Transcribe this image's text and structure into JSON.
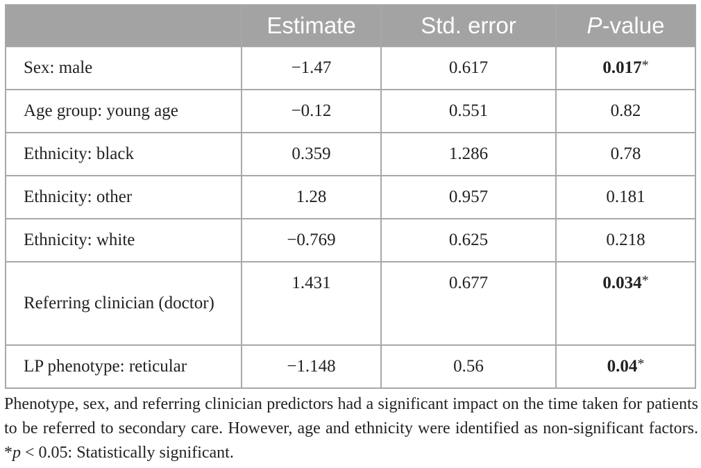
{
  "table": {
    "headers": [
      "",
      "Estimate",
      "Std. error",
      "P-value"
    ],
    "header_pvalue_italic": "P",
    "header_pvalue_rest": "-value",
    "rows": [
      {
        "label": "Sex: male",
        "estimate": "−1.47",
        "std_error": "0.617",
        "p_value": "0.017",
        "significant": true
      },
      {
        "label": "Age group: young age",
        "estimate": "−0.12",
        "std_error": "0.551",
        "p_value": "0.82",
        "significant": false
      },
      {
        "label": "Ethnicity: black",
        "estimate": "0.359",
        "std_error": "1.286",
        "p_value": "0.78",
        "significant": false
      },
      {
        "label": "Ethnicity: other",
        "estimate": "1.28",
        "std_error": "0.957",
        "p_value": "0.181",
        "significant": false
      },
      {
        "label": "Ethnicity: white",
        "estimate": "−0.769",
        "std_error": "0.625",
        "p_value": "0.218",
        "significant": false
      },
      {
        "label": "Referring clinician (doctor)",
        "estimate": "1.431",
        "std_error": "0.677",
        "p_value": "0.034",
        "significant": true
      },
      {
        "label": "LP phenotype: reticular",
        "estimate": "−1.148",
        "std_error": "0.56",
        "p_value": "0.04",
        "significant": true
      }
    ],
    "significance_mark": "*"
  },
  "footnote": {
    "text": "Phenotype, sex, and referring clinician predictors had a significant impact on the time taken for patients to be referred to secondary care. However, age and ethnicity were identified as non-significant factors. ",
    "mark": "*",
    "p_symbol": "p",
    "threshold": " < 0.05: Statistically significant."
  }
}
